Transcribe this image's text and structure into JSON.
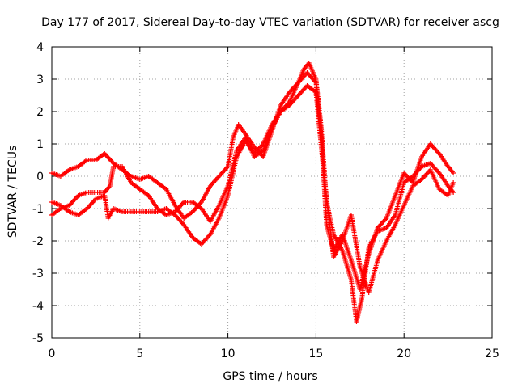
{
  "chart_data": {
    "type": "scatter",
    "title": "Day 177 of 2017, Sidereal Day-to-day VTEC variation (SDTVAR) for receiver ascg",
    "xlabel": "GPS time / hours",
    "ylabel": "SDTVAR / TECUs",
    "xlim": [
      0,
      25
    ],
    "ylim": [
      -5,
      4
    ],
    "xticks": [
      "0",
      "5",
      "10",
      "15",
      "20",
      "25"
    ],
    "yticks": [
      "-5",
      "-4",
      "-3",
      "-2",
      "-1",
      "0",
      "1",
      "2",
      "3",
      "4"
    ],
    "grid": true,
    "marker": "+",
    "color": "#ff0000",
    "series": [
      {
        "x": [
          0.0,
          0.5,
          1.0,
          1.5,
          2.0,
          2.5,
          3.0,
          3.5,
          4.0,
          4.5,
          5.0,
          5.5,
          6.0,
          6.5,
          7.0,
          7.5,
          8.0,
          8.5,
          9.0,
          9.5,
          10.0,
          10.3,
          10.6,
          11.0,
          11.5,
          12.0,
          12.5,
          13.0,
          13.5,
          14.0,
          14.5,
          15.0,
          15.3,
          15.6,
          16.0,
          16.5,
          17.0,
          17.5,
          18.0,
          18.5,
          19.0,
          19.5,
          20.0,
          20.5,
          21.0,
          21.5,
          22.0,
          22.5,
          22.8
        ],
        "values": [
          0.1,
          0.0,
          0.2,
          0.3,
          0.5,
          0.5,
          0.7,
          0.4,
          0.2,
          0.0,
          -0.1,
          0.0,
          -0.2,
          -0.4,
          -0.9,
          -1.3,
          -1.1,
          -0.8,
          -0.3,
          0.0,
          0.3,
          1.2,
          1.6,
          1.3,
          0.9,
          0.6,
          1.4,
          2.2,
          2.6,
          2.9,
          3.2,
          2.9,
          1.2,
          -1.5,
          -2.3,
          -1.8,
          -2.6,
          -3.5,
          -2.4,
          -1.6,
          -1.3,
          -0.6,
          0.1,
          -0.2,
          0.6,
          1.0,
          0.7,
          0.3,
          0.1
        ]
      },
      {
        "x": [
          0.0,
          0.5,
          1.0,
          1.5,
          2.0,
          2.5,
          3.0,
          3.3,
          3.5,
          4.0,
          4.5,
          5.0,
          5.5,
          6.0,
          6.5,
          7.0,
          7.5,
          8.0,
          8.5,
          9.0,
          9.5,
          10.0,
          10.5,
          11.0,
          11.5,
          12.0,
          12.5,
          13.0,
          13.5,
          14.0,
          14.3,
          14.6,
          15.0,
          15.3,
          15.6,
          16.0,
          16.5,
          17.0,
          17.3,
          17.6,
          18.0,
          18.5,
          19.0,
          19.5,
          20.0,
          20.5,
          21.0,
          21.5,
          22.0,
          22.5,
          22.8
        ],
        "values": [
          -1.2,
          -1.0,
          -0.9,
          -0.6,
          -0.5,
          -0.5,
          -0.5,
          -0.3,
          0.3,
          0.3,
          -0.2,
          -0.4,
          -0.6,
          -1.0,
          -1.2,
          -1.1,
          -0.8,
          -0.8,
          -1.0,
          -1.4,
          -0.9,
          -0.3,
          0.8,
          1.2,
          0.6,
          0.8,
          1.5,
          2.0,
          2.3,
          2.9,
          3.3,
          3.5,
          3.0,
          1.5,
          -0.8,
          -1.8,
          -2.3,
          -3.2,
          -4.5,
          -3.8,
          -2.2,
          -1.7,
          -1.6,
          -1.2,
          -0.2,
          0.0,
          0.3,
          0.4,
          0.1,
          -0.3,
          -0.5
        ]
      },
      {
        "x": [
          0.0,
          0.5,
          1.0,
          1.5,
          2.0,
          2.5,
          3.0,
          3.2,
          3.5,
          4.0,
          4.5,
          5.0,
          5.5,
          6.0,
          6.5,
          7.0,
          7.5,
          8.0,
          8.5,
          9.0,
          9.5,
          10.0,
          10.5,
          11.0,
          11.5,
          12.0,
          12.5,
          13.0,
          13.5,
          14.0,
          14.5,
          15.0,
          15.5,
          16.0,
          16.5,
          17.0,
          17.5,
          18.0,
          18.5,
          19.0,
          19.5,
          20.0,
          20.5,
          21.0,
          21.5,
          22.0,
          22.5,
          22.8
        ],
        "values": [
          -0.8,
          -0.9,
          -1.1,
          -1.2,
          -1.0,
          -0.7,
          -0.6,
          -1.3,
          -1.0,
          -1.1,
          -1.1,
          -1.1,
          -1.1,
          -1.1,
          -1.0,
          -1.2,
          -1.5,
          -1.9,
          -2.1,
          -1.8,
          -1.3,
          -0.6,
          0.6,
          1.1,
          0.7,
          1.0,
          1.6,
          2.0,
          2.2,
          2.5,
          2.8,
          2.6,
          -0.2,
          -2.5,
          -2.0,
          -1.2,
          -2.8,
          -3.6,
          -2.6,
          -2.0,
          -1.5,
          -0.9,
          -0.3,
          -0.1,
          0.2,
          -0.4,
          -0.6,
          -0.2
        ]
      }
    ]
  }
}
